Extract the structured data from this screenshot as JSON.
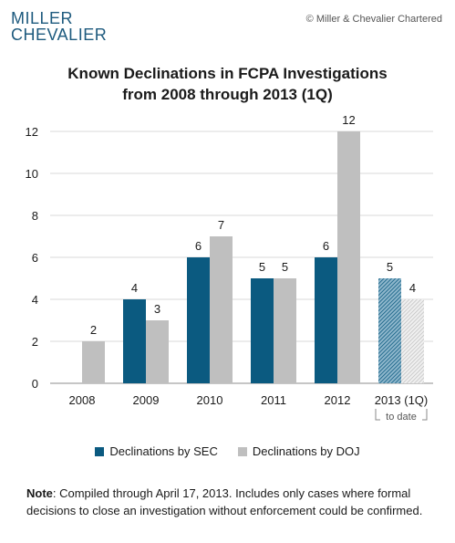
{
  "logo": {
    "line1": "MILLER",
    "line2": "CHEVALIER"
  },
  "copyright": "© Miller & Chevalier Chartered",
  "chart_data": {
    "type": "bar",
    "title": "Known Declinations in FCPA Investigations",
    "subtitle": "from 2008 through 2013 (1Q)",
    "categories": [
      "2008",
      "2009",
      "2010",
      "2011",
      "2012",
      "2013 (1Q)"
    ],
    "category_annotation": {
      "category": "2013 (1Q)",
      "text": "to date"
    },
    "series": [
      {
        "name": "Declinations by SEC",
        "color": "#0b5a80",
        "values": [
          null,
          4,
          6,
          5,
          6,
          5
        ]
      },
      {
        "name": "Declinations by DOJ",
        "color": "#bfbfbf",
        "values": [
          2,
          3,
          7,
          5,
          12,
          4
        ]
      }
    ],
    "hatched_category": "2013 (1Q)",
    "ylim": [
      0,
      12
    ],
    "yticks": [
      0,
      2,
      4,
      6,
      8,
      10,
      12
    ],
    "xlabel": "",
    "ylabel": "",
    "grid": true,
    "legend": "bottom"
  },
  "note": {
    "label": "Note",
    "text": ": Compiled through April 17, 2013. Includes only cases where formal decisions to close an investigation without enforcement could be confirmed."
  }
}
